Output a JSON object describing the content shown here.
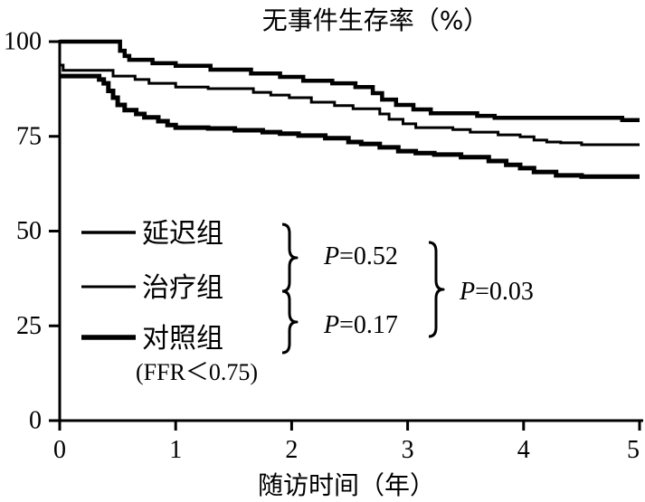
{
  "chart_data": {
    "type": "line",
    "step": true,
    "title": "无事件生存率（%）",
    "xlabel": "随访时间（年）",
    "ylabel": "",
    "xlim": [
      0,
      5
    ],
    "ylim": [
      0,
      100
    ],
    "xticks": [
      0,
      1,
      2,
      3,
      4,
      5
    ],
    "yticks": [
      0,
      25,
      50,
      75,
      100
    ],
    "grid": false,
    "legend_position": "lower-left",
    "legend_note": "(FFR＜0.75)",
    "series": [
      {
        "name": "延迟组",
        "color": "#000000",
        "points": [
          [
            0,
            100
          ],
          [
            0.52,
            97.6
          ],
          [
            0.56,
            96.2
          ],
          [
            0.6,
            95.2
          ],
          [
            0.8,
            94.3
          ],
          [
            1.0,
            93.6
          ],
          [
            1.3,
            92.6
          ],
          [
            1.65,
            91.6
          ],
          [
            1.9,
            90.7
          ],
          [
            2.1,
            89.7
          ],
          [
            2.35,
            89.0
          ],
          [
            2.55,
            88.0
          ],
          [
            2.7,
            86.4
          ],
          [
            2.78,
            84.7
          ],
          [
            2.9,
            83.3
          ],
          [
            3.05,
            82.1
          ],
          [
            3.2,
            81.1
          ],
          [
            3.6,
            80.4
          ],
          [
            3.75,
            79.9
          ],
          [
            4.85,
            79.3
          ],
          [
            5,
            79.3
          ]
        ]
      },
      {
        "name": "治疗组",
        "color": "#000000",
        "points": [
          [
            0,
            93.8
          ],
          [
            0.03,
            92.4
          ],
          [
            0.46,
            90.9
          ],
          [
            0.65,
            90.0
          ],
          [
            0.77,
            89.0
          ],
          [
            1.0,
            88.0
          ],
          [
            1.28,
            87.6
          ],
          [
            1.67,
            86.6
          ],
          [
            1.82,
            85.9
          ],
          [
            1.98,
            85.2
          ],
          [
            2.17,
            84.0
          ],
          [
            2.37,
            83.1
          ],
          [
            2.53,
            82.3
          ],
          [
            2.76,
            80.9
          ],
          [
            2.84,
            79.5
          ],
          [
            2.96,
            78.3
          ],
          [
            3.07,
            77.3
          ],
          [
            3.39,
            76.8
          ],
          [
            3.54,
            76.1
          ],
          [
            3.78,
            75.4
          ],
          [
            3.97,
            74.9
          ],
          [
            4.09,
            74.0
          ],
          [
            4.2,
            73.5
          ],
          [
            4.32,
            73.3
          ],
          [
            4.5,
            72.8
          ],
          [
            5,
            72.8
          ]
        ]
      },
      {
        "name": "对照组",
        "color": "#000000",
        "points": [
          [
            0,
            90.9
          ],
          [
            0.34,
            90.0
          ],
          [
            0.38,
            89.0
          ],
          [
            0.42,
            87.0
          ],
          [
            0.46,
            85.2
          ],
          [
            0.5,
            83.3
          ],
          [
            0.56,
            81.9
          ],
          [
            0.66,
            80.9
          ],
          [
            0.73,
            80.0
          ],
          [
            0.85,
            79.0
          ],
          [
            0.93,
            78.0
          ],
          [
            1.0,
            77.3
          ],
          [
            1.28,
            77.1
          ],
          [
            1.51,
            76.6
          ],
          [
            1.75,
            76.1
          ],
          [
            1.9,
            75.7
          ],
          [
            2.06,
            75.2
          ],
          [
            2.29,
            74.5
          ],
          [
            2.49,
            73.5
          ],
          [
            2.6,
            73.0
          ],
          [
            2.76,
            72.1
          ],
          [
            2.92,
            71.1
          ],
          [
            3.07,
            70.6
          ],
          [
            3.23,
            70.2
          ],
          [
            3.46,
            69.5
          ],
          [
            3.7,
            68.5
          ],
          [
            3.85,
            67.5
          ],
          [
            3.97,
            66.6
          ],
          [
            4.09,
            65.6
          ],
          [
            4.28,
            64.7
          ],
          [
            4.5,
            64.4
          ],
          [
            5,
            64.4
          ]
        ]
      }
    ],
    "annotations": [
      {
        "italic": "P",
        "text": "=0.52"
      },
      {
        "italic": "P",
        "text": "=0.17"
      },
      {
        "italic": "P",
        "text": "=0.03"
      }
    ]
  }
}
